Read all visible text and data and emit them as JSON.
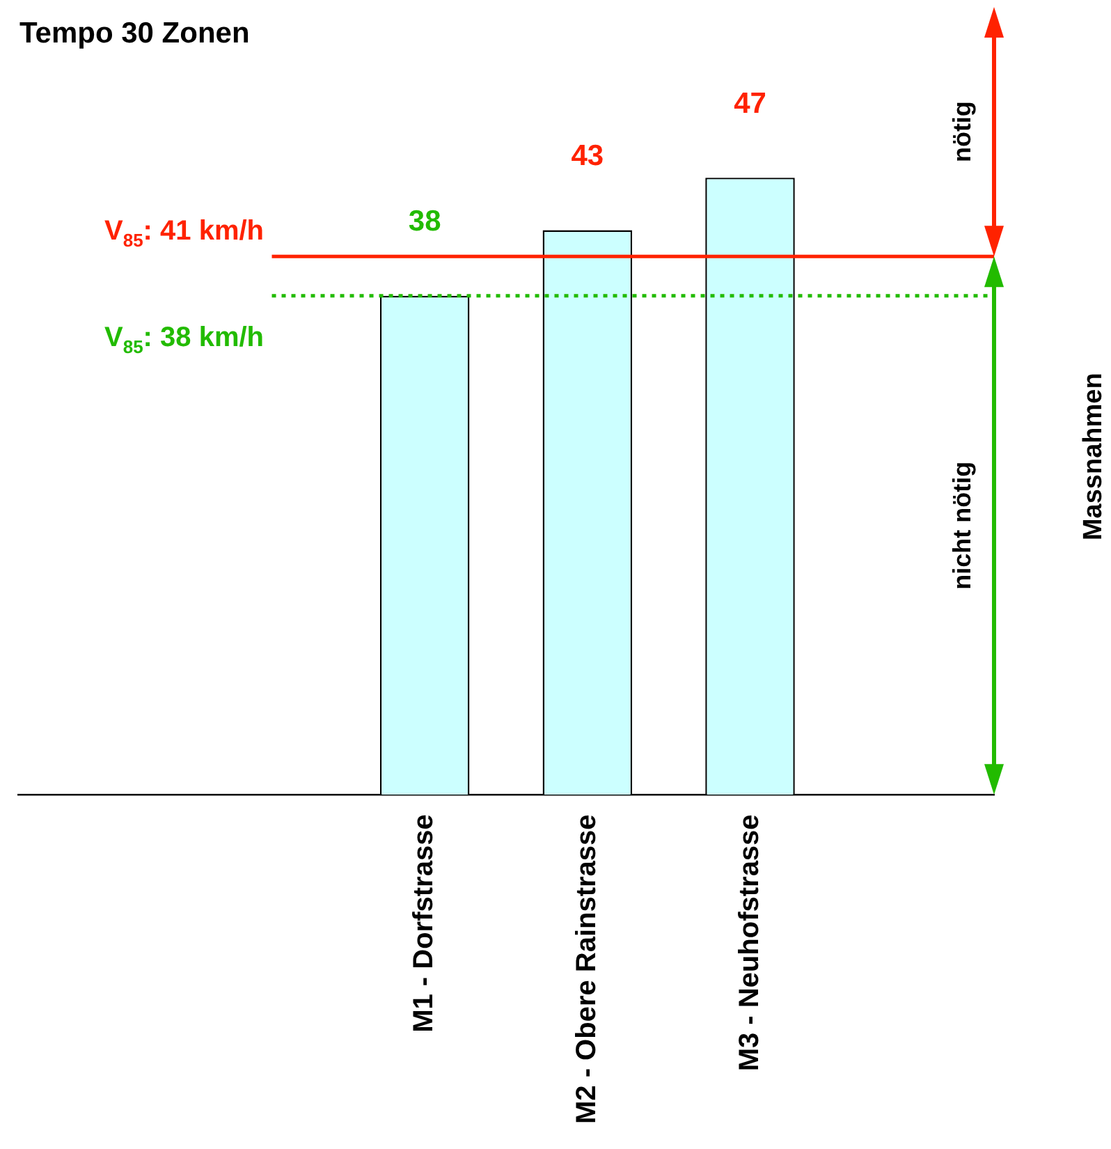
{
  "chart_data": {
    "type": "bar",
    "title": "Tempo 30 Zonen",
    "categories": [
      null,
      null,
      "M1 - Dorfstrasse",
      "M2 - Obere Rainstrasse",
      "M3 - Neuhofstrasse",
      null
    ],
    "values": [
      null,
      null,
      38,
      43,
      47,
      null
    ],
    "color": "#ccffff",
    "data_labels": true,
    "y2label": "Massnahmen",
    "annotations": [
      "nötig",
      "nicht nötig"
    ],
    "ref_lines": [
      {
        "axis": "y",
        "value": 41,
        "label": "V$_{85}$: 41 km/h",
        "color": "#ff2200",
        "line_style": "solid"
      },
      {
        "axis": "y",
        "value": 38,
        "label": "V$_{85}$: 38 km/h",
        "color": "#22bb00",
        "line_style": "dotted"
      }
    ],
    "grid": false,
    "legend": false
  }
}
